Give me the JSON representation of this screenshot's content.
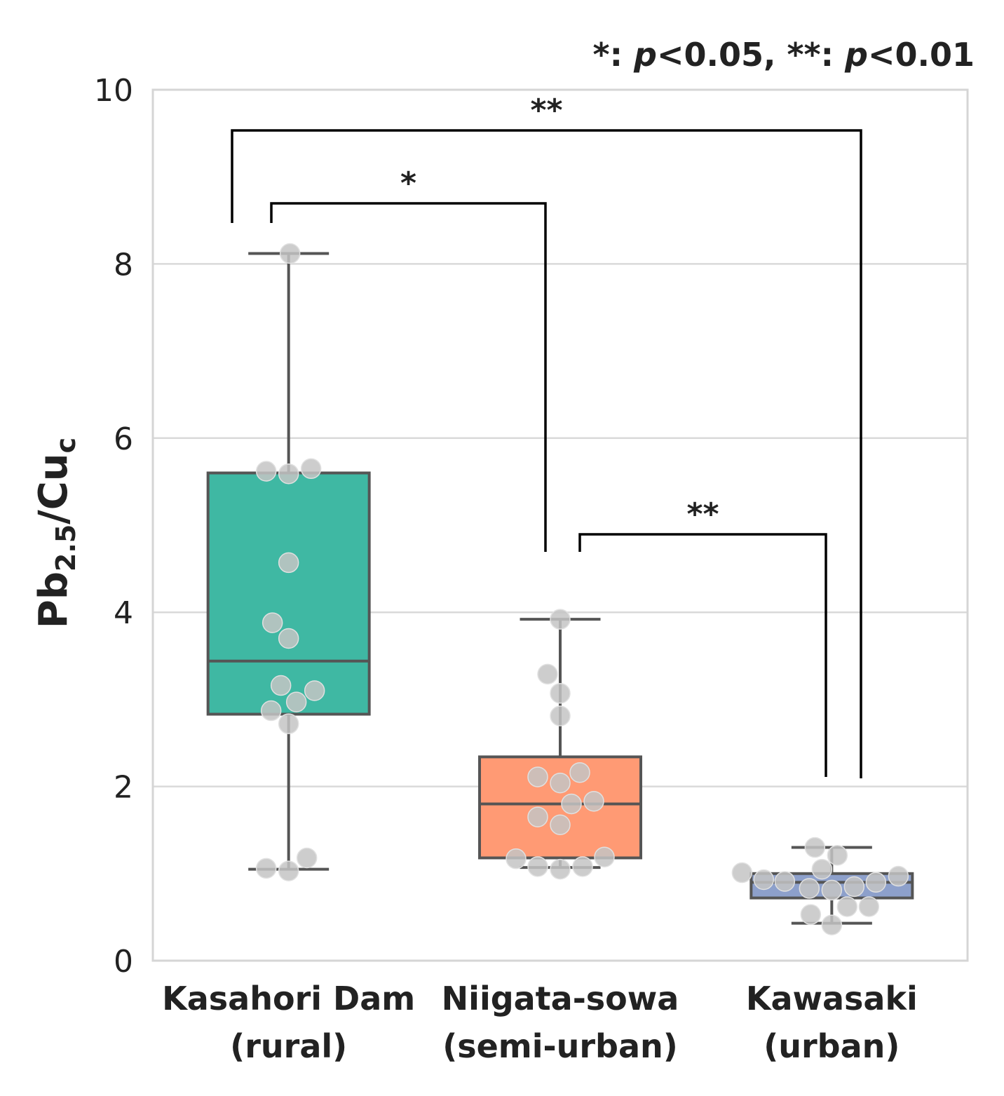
{
  "chart_data": {
    "type": "box",
    "note_parts": [
      "*: ",
      "p",
      "<0.05, **: ",
      "p",
      "<0.01"
    ],
    "ylabel_parts": [
      "Pb",
      "2.5",
      "/Cu",
      "c"
    ],
    "categories": [
      [
        "Kasahori Dam",
        "(rural)"
      ],
      [
        "Niigata-sowa",
        "(semi-urban)"
      ],
      [
        "Kawasaki",
        "(urban)"
      ]
    ],
    "colors": [
      "#3fb8a3",
      "#ff9a74",
      "#8da0cb"
    ],
    "boxes": [
      {
        "whislo": 1.05,
        "q1": 2.83,
        "med": 3.44,
        "q3": 5.6,
        "whishi": 8.12
      },
      {
        "whislo": 1.07,
        "q1": 1.18,
        "med": 1.8,
        "q3": 2.34,
        "whishi": 3.92
      },
      {
        "whislo": 0.43,
        "q1": 0.72,
        "med": 0.9,
        "q3": 1.0,
        "whishi": 1.3
      }
    ],
    "points": [
      [
        8.12,
        5.62,
        5.59,
        5.65,
        4.57,
        3.88,
        3.7,
        3.16,
        3.1,
        2.97,
        2.87,
        2.72,
        1.06,
        1.03,
        1.18
      ],
      [
        3.92,
        3.29,
        3.07,
        2.81,
        2.11,
        2.04,
        2.16,
        1.83,
        1.8,
        1.65,
        1.56,
        1.17,
        1.08,
        1.05,
        1.08,
        1.19
      ],
      [
        1.3,
        1.21,
        1.01,
        0.93,
        0.91,
        1.05,
        0.83,
        0.81,
        0.85,
        0.9,
        0.97,
        0.53,
        0.62,
        0.62,
        0.41
      ]
    ],
    "significance": [
      "**",
      "*",
      "**"
    ],
    "ylim": [
      0,
      10
    ],
    "yticks": [
      0,
      2,
      4,
      6,
      8,
      10
    ],
    "grid": true
  }
}
